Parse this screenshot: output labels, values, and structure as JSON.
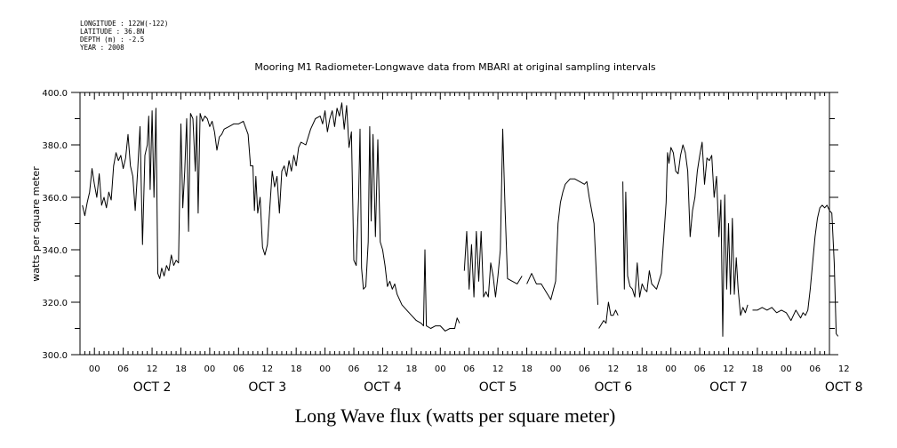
{
  "meta": {
    "longitude": "LONGITUDE : 122W(-122)",
    "latitude": "LATITUDE : 36.8N",
    "depth": "DEPTH (m) : -2.5",
    "year": "YEAR : 2008"
  },
  "chart_data": {
    "type": "line",
    "title": "Mooring M1 Radiometer-Longwave data from MBARI at original sampling intervals",
    "xlabel": "Long Wave flux (watts per square meter)",
    "ylabel": "watts per square meter",
    "ylim": [
      300,
      400
    ],
    "yticks": [
      300,
      320,
      340,
      360,
      380,
      400
    ],
    "xlim_hours": [
      -3,
      153
    ],
    "hour_tick_labels": [
      "00",
      "06",
      "12",
      "18"
    ],
    "last_hour_ticks": [
      "00",
      "06",
      "12"
    ],
    "day_labels": [
      "OCT 2",
      "OCT 3",
      "OCT 4",
      "OCT 5",
      "OCT 6",
      "OCT 7",
      "OCT 8"
    ],
    "grid": false,
    "series": [
      {
        "segments": [
          [
            [
              -2.5,
              357
            ],
            [
              -2,
              353
            ],
            [
              -1.5,
              358
            ],
            [
              -1,
              362
            ],
            [
              -0.5,
              371
            ],
            [
              0,
              365
            ],
            [
              0.5,
              360
            ],
            [
              1,
              369
            ],
            [
              1.5,
              357
            ],
            [
              2,
              360
            ],
            [
              2.5,
              356
            ],
            [
              3,
              362
            ],
            [
              3.5,
              359
            ],
            [
              4,
              372
            ],
            [
              4.5,
              377
            ],
            [
              5,
              374
            ],
            [
              5.5,
              376
            ],
            [
              6,
              371
            ],
            [
              6.5,
              375
            ],
            [
              7,
              384
            ],
            [
              7.5,
              372
            ],
            [
              8,
              368
            ],
            [
              8.5,
              355
            ],
            [
              9,
              370
            ],
            [
              9.5,
              387
            ],
            [
              10,
              342
            ],
            [
              10.5,
              376
            ],
            [
              11,
              380
            ],
            [
              11.3,
              391
            ],
            [
              11.6,
              363
            ],
            [
              12,
              393
            ],
            [
              12.4,
              360
            ],
            [
              12.8,
              394
            ],
            [
              13.2,
              331
            ],
            [
              13.6,
              329
            ],
            [
              14,
              333
            ],
            [
              14.5,
              330
            ],
            [
              15,
              334
            ],
            [
              15.5,
              332
            ],
            [
              16,
              338
            ],
            [
              16.5,
              334
            ],
            [
              17,
              336
            ],
            [
              17.5,
              335
            ],
            [
              18,
              388
            ],
            [
              18.4,
              356
            ],
            [
              18.8,
              370
            ],
            [
              19.2,
              390
            ],
            [
              19.6,
              347
            ],
            [
              20,
              392
            ],
            [
              20.5,
              390
            ],
            [
              21,
              370
            ],
            [
              21.3,
              391
            ],
            [
              21.6,
              354
            ],
            [
              22,
              392
            ],
            [
              22.5,
              389
            ],
            [
              23,
              391
            ],
            [
              23.5,
              390
            ],
            [
              24,
              387
            ],
            [
              24.5,
              389
            ],
            [
              25,
              385
            ],
            [
              25.5,
              378
            ],
            [
              26,
              383
            ],
            [
              26.5,
              384
            ],
            [
              27,
              386
            ],
            [
              28,
              387
            ],
            [
              29,
              388
            ],
            [
              30,
              388
            ],
            [
              31,
              389
            ],
            [
              32,
              384
            ],
            [
              32.5,
              372
            ],
            [
              33,
              372
            ],
            [
              33.3,
              355
            ],
            [
              33.6,
              368
            ],
            [
              34,
              354
            ],
            [
              34.5,
              360
            ],
            [
              35,
              341
            ],
            [
              35.5,
              338
            ],
            [
              36,
              342
            ],
            [
              36.5,
              356
            ],
            [
              37,
              370
            ],
            [
              37.5,
              364
            ],
            [
              38,
              368
            ],
            [
              38.5,
              354
            ],
            [
              39,
              370
            ],
            [
              39.5,
              372
            ],
            [
              40,
              368
            ],
            [
              40.5,
              374
            ],
            [
              41,
              370
            ],
            [
              41.5,
              376
            ],
            [
              42,
              372
            ],
            [
              42.5,
              379
            ],
            [
              43,
              381
            ],
            [
              44,
              380
            ],
            [
              45,
              386
            ],
            [
              46,
              390
            ],
            [
              47,
              391
            ],
            [
              47.5,
              388
            ],
            [
              48,
              393
            ],
            [
              48.5,
              385
            ],
            [
              49,
              390
            ],
            [
              49.5,
              393
            ],
            [
              50,
              387
            ],
            [
              50.5,
              394
            ],
            [
              51,
              391
            ],
            [
              51.5,
              396
            ],
            [
              52,
              386
            ],
            [
              52.5,
              395
            ],
            [
              53,
              379
            ],
            [
              53.5,
              385
            ],
            [
              54,
              336
            ],
            [
              54.5,
              334
            ],
            [
              55,
              360
            ],
            [
              55.3,
              386
            ],
            [
              55.6,
              333
            ],
            [
              56,
              325
            ],
            [
              56.5,
              326
            ],
            [
              57,
              343
            ],
            [
              57.3,
              387
            ],
            [
              57.6,
              351
            ],
            [
              58,
              384
            ],
            [
              58.5,
              345
            ],
            [
              59,
              382
            ],
            [
              59.5,
              343
            ],
            [
              60,
              340
            ],
            [
              60.5,
              334
            ],
            [
              61,
              326
            ],
            [
              61.5,
              328
            ],
            [
              62,
              325
            ],
            [
              62.5,
              327
            ],
            [
              63,
              323
            ],
            [
              64,
              319
            ],
            [
              65,
              317
            ],
            [
              66,
              315
            ],
            [
              67,
              313
            ],
            [
              68,
              312
            ],
            [
              68.5,
              311
            ],
            [
              68.8,
              340
            ],
            [
              69.1,
              311
            ],
            [
              70,
              310
            ],
            [
              71,
              311
            ],
            [
              72,
              311
            ],
            [
              73,
              309
            ],
            [
              74,
              310
            ],
            [
              75,
              310
            ],
            [
              75.5,
              314
            ],
            [
              76,
              312
            ]
          ],
          [
            [
              77,
              332
            ],
            [
              77.5,
              347
            ],
            [
              78,
              325
            ],
            [
              78.5,
              342
            ],
            [
              79,
              322
            ],
            [
              79.5,
              347
            ],
            [
              80,
              328
            ],
            [
              80.5,
              347
            ],
            [
              81,
              322
            ],
            [
              81.5,
              324
            ],
            [
              82,
              322
            ],
            [
              82.5,
              335
            ],
            [
              83,
              330
            ],
            [
              83.5,
              322
            ],
            [
              84,
              330
            ],
            [
              84.5,
              340
            ],
            [
              85,
              386
            ],
            [
              85.5,
              355
            ],
            [
              86,
              329
            ],
            [
              87,
              328
            ],
            [
              88,
              327
            ],
            [
              89,
              330
            ]
          ],
          [
            [
              90,
              327
            ],
            [
              91,
              331
            ],
            [
              92,
              327
            ],
            [
              93,
              327
            ],
            [
              94,
              324
            ],
            [
              95,
              321
            ],
            [
              96,
              328
            ],
            [
              96.5,
              350
            ],
            [
              97,
              358
            ],
            [
              97.5,
              362
            ],
            [
              98,
              365
            ],
            [
              99,
              367
            ],
            [
              100,
              367
            ],
            [
              101,
              366
            ],
            [
              102,
              365
            ],
            [
              102.5,
              366
            ],
            [
              103,
              360
            ],
            [
              104,
              350
            ],
            [
              104.5,
              330
            ],
            [
              104.8,
              319
            ]
          ],
          [
            [
              105,
              310
            ],
            [
              106,
              313
            ],
            [
              106.5,
              312
            ],
            [
              107,
              320
            ],
            [
              107.5,
              315
            ],
            [
              108,
              315
            ],
            [
              108.5,
              317
            ],
            [
              109,
              315
            ]
          ],
          [
            [
              110,
              366
            ],
            [
              110.3,
              325
            ],
            [
              110.6,
              362
            ],
            [
              111,
              330
            ],
            [
              111.5,
              326
            ],
            [
              112,
              325
            ],
            [
              112.5,
              322
            ],
            [
              113,
              335
            ],
            [
              113.5,
              322
            ],
            [
              114,
              327
            ],
            [
              114.5,
              325
            ],
            [
              115,
              324
            ],
            [
              115.5,
              332
            ],
            [
              116,
              327
            ],
            [
              117,
              325
            ],
            [
              118,
              331
            ],
            [
              119,
              358
            ],
            [
              119.3,
              377
            ],
            [
              119.6,
              373
            ],
            [
              120,
              379
            ],
            [
              120.5,
              377
            ],
            [
              121,
              370
            ],
            [
              121.5,
              369
            ],
            [
              122,
              376
            ],
            [
              122.5,
              380
            ],
            [
              123,
              377
            ],
            [
              123.5,
              370
            ],
            [
              124,
              345
            ],
            [
              124.5,
              355
            ],
            [
              125,
              360
            ],
            [
              125.5,
              370
            ],
            [
              126,
              376
            ],
            [
              126.5,
              381
            ],
            [
              127,
              365
            ],
            [
              127.5,
              375
            ],
            [
              128,
              374
            ],
            [
              128.5,
              376
            ],
            [
              129,
              360
            ],
            [
              129.5,
              368
            ],
            [
              130,
              345
            ],
            [
              130.4,
              359
            ],
            [
              130.8,
              307
            ],
            [
              131.2,
              361
            ],
            [
              131.6,
              325
            ],
            [
              132,
              350
            ],
            [
              132.4,
              323
            ],
            [
              132.8,
              352
            ],
            [
              133.2,
              323
            ],
            [
              133.6,
              337
            ],
            [
              134,
              325
            ],
            [
              134.5,
              315
            ],
            [
              135,
              318
            ],
            [
              135.5,
              316
            ],
            [
              136,
              319
            ]
          ],
          [
            [
              137,
              317
            ],
            [
              138,
              317
            ],
            [
              139,
              318
            ],
            [
              140,
              317
            ],
            [
              141,
              318
            ],
            [
              142,
              316
            ],
            [
              143,
              317
            ],
            [
              144,
              316
            ],
            [
              145,
              313
            ],
            [
              146,
              317
            ],
            [
              147,
              314
            ],
            [
              147.5,
              316
            ],
            [
              148,
              315
            ],
            [
              148.5,
              317
            ],
            [
              149,
              325
            ],
            [
              149.5,
              335
            ],
            [
              150,
              345
            ],
            [
              150.5,
              352
            ],
            [
              151,
              356
            ],
            [
              151.5,
              357
            ],
            [
              152,
              356
            ],
            [
              152.5,
              357
            ],
            [
              153,
              355
            ],
            [
              153.5,
              354
            ],
            [
              154,
              335
            ],
            [
              154.4,
              308
            ],
            [
              154.8,
              307
            ]
          ]
        ]
      }
    ]
  }
}
